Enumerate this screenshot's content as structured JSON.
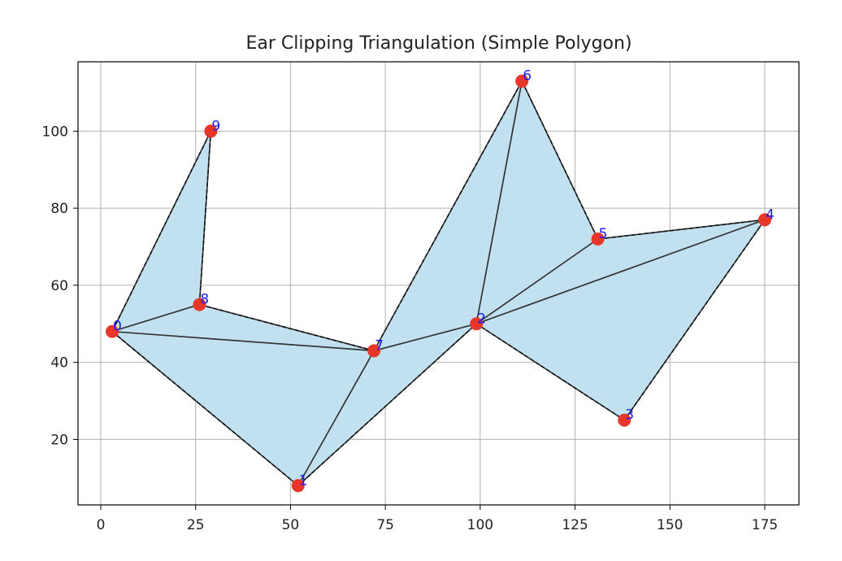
{
  "chart_data": {
    "type": "scatter",
    "title": "Ear Clipping Triangulation (Simple Polygon)",
    "xlabel": "",
    "ylabel": "",
    "xlim": [
      -6,
      184
    ],
    "ylim": [
      3,
      118
    ],
    "xticks": [
      0,
      25,
      50,
      75,
      100,
      125,
      150,
      175
    ],
    "yticks": [
      20,
      40,
      60,
      80,
      100
    ],
    "grid": true,
    "points": [
      {
        "label": "0",
        "x": 3,
        "y": 48
      },
      {
        "label": "1",
        "x": 52,
        "y": 8
      },
      {
        "label": "2",
        "x": 99,
        "y": 50
      },
      {
        "label": "3",
        "x": 138,
        "y": 25
      },
      {
        "label": "4",
        "x": 175,
        "y": 77
      },
      {
        "label": "5",
        "x": 131,
        "y": 72
      },
      {
        "label": "6",
        "x": 111,
        "y": 113
      },
      {
        "label": "7",
        "x": 72,
        "y": 43
      },
      {
        "label": "8",
        "x": 26,
        "y": 55
      },
      {
        "label": "9",
        "x": 29,
        "y": 100
      }
    ],
    "polygon_order": [
      0,
      1,
      2,
      3,
      4,
      5,
      6,
      7,
      8,
      9
    ],
    "triangles": [
      [
        0,
        8,
        9
      ],
      [
        0,
        7,
        8
      ],
      [
        0,
        1,
        7
      ],
      [
        1,
        2,
        7
      ],
      [
        2,
        6,
        7
      ],
      [
        2,
        5,
        6
      ],
      [
        2,
        4,
        5
      ],
      [
        2,
        3,
        4
      ]
    ],
    "colors": {
      "fill": "#bfdfef",
      "edge": "#333333",
      "point": "#e8372a",
      "label": "#1a1aff",
      "grid": "#b0b0b0"
    }
  }
}
